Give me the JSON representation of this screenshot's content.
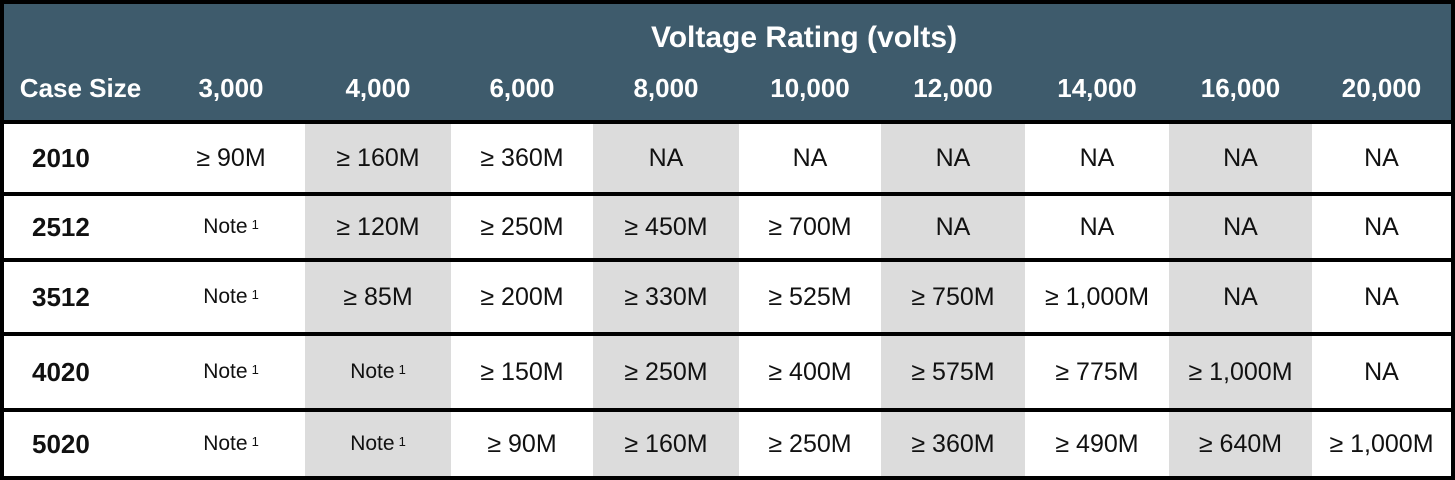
{
  "table": {
    "super_header": "Voltage Rating (volts)",
    "columns": [
      "Case Size",
      "3,000",
      "4,000",
      "6,000",
      "8,000",
      "10,000",
      "12,000",
      "14,000",
      "16,000",
      "20,000"
    ],
    "rows": [
      {
        "case": "2010",
        "values": [
          "≥ 90M",
          "≥ 160M",
          "≥ 360M",
          "NA",
          "NA",
          "NA",
          "NA",
          "NA",
          "NA"
        ]
      },
      {
        "case": "2512",
        "values": [
          "Note",
          "≥ 120M",
          "≥ 250M",
          "≥ 450M",
          "≥ 700M",
          "NA",
          "NA",
          "NA",
          "NA"
        ]
      },
      {
        "case": "3512",
        "values": [
          "Note",
          "≥ 85M",
          "≥ 200M",
          "≥ 330M",
          "≥ 525M",
          "≥ 750M",
          "≥ 1,000M",
          "NA",
          "NA"
        ]
      },
      {
        "case": "4020",
        "values": [
          "Note",
          "Note",
          "≥ 150M",
          "≥ 250M",
          "≥ 400M",
          "≥ 575M",
          "≥ 775M",
          "≥ 1,000M",
          "NA"
        ]
      },
      {
        "case": "5020",
        "values": [
          "Note",
          "Note",
          "≥ 90M",
          "≥ 160M",
          "≥ 250M",
          "≥ 360M",
          "≥ 490M",
          "≥ 640M",
          "≥ 1,000M"
        ]
      }
    ],
    "note_superscript": "1",
    "colors": {
      "header_bg": "#3e5b6c",
      "header_text": "#ffffff",
      "shaded_cell": "#dcdcdc",
      "border": "#000000"
    }
  }
}
